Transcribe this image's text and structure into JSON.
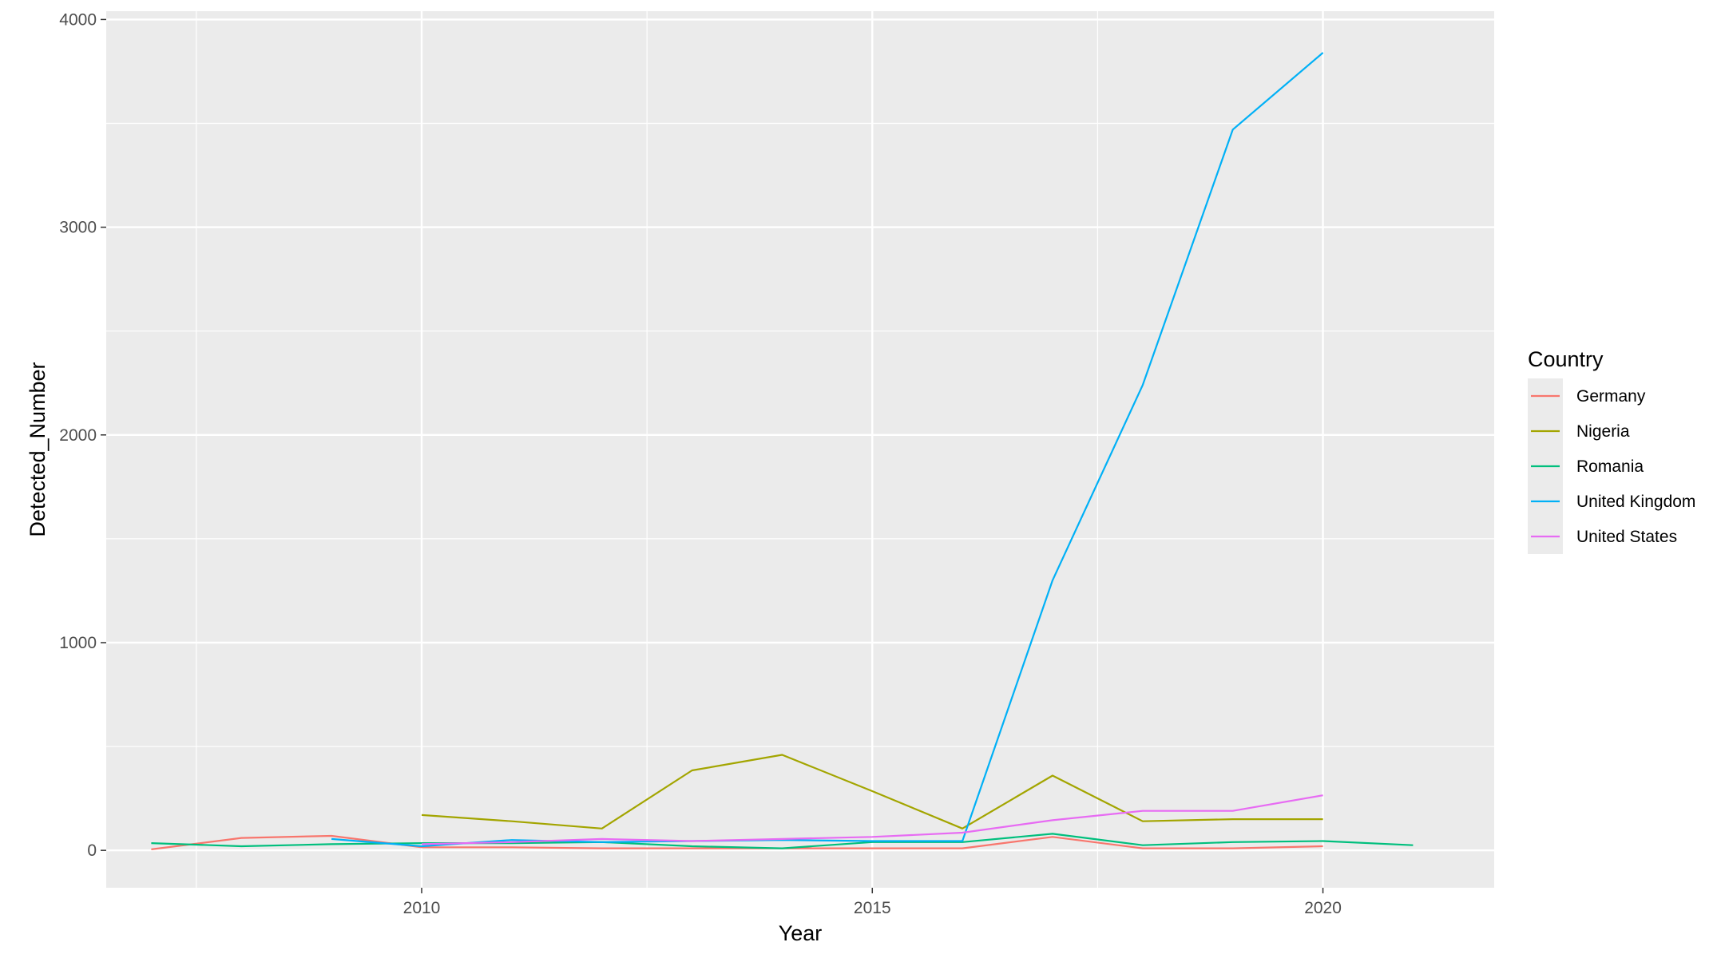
{
  "chart_data": {
    "type": "line",
    "title": "",
    "xlabel": "Year",
    "ylabel": "Detected_Number",
    "xlim": [
      2006.5,
      2021.9
    ],
    "ylim": [
      -180,
      4040
    ],
    "x_ticks": [
      2010,
      2015,
      2020
    ],
    "x_tick_labels": [
      "2010",
      "2015",
      "2020"
    ],
    "y_ticks": [
      0,
      1000,
      2000,
      3000,
      4000
    ],
    "y_tick_labels": [
      "0",
      "1000",
      "2000",
      "3000",
      "4000"
    ],
    "grid": true,
    "legend_position": "right",
    "legend_title": "Country",
    "series": [
      {
        "name": "Germany",
        "color": "#F8766D",
        "x": [
          2007,
          2008,
          2009,
          2010,
          2011,
          2012,
          2013,
          2014,
          2015,
          2016,
          2017,
          2018,
          2019,
          2020
        ],
        "y": [
          5,
          60,
          70,
          15,
          15,
          10,
          10,
          10,
          10,
          10,
          65,
          10,
          10,
          20
        ]
      },
      {
        "name": "Nigeria",
        "color": "#A3A500",
        "x": [
          2010,
          2011,
          2012,
          2013,
          2014,
          2015,
          2016,
          2017,
          2018,
          2019,
          2020
        ],
        "y": [
          170,
          140,
          105,
          385,
          460,
          285,
          105,
          360,
          140,
          150,
          150
        ]
      },
      {
        "name": "Romania",
        "color": "#00BF7D",
        "x": [
          2007,
          2008,
          2009,
          2010,
          2011,
          2012,
          2013,
          2014,
          2015,
          2016,
          2017,
          2018,
          2019,
          2020,
          2021
        ],
        "y": [
          35,
          20,
          30,
          35,
          35,
          40,
          20,
          10,
          40,
          40,
          80,
          25,
          40,
          45,
          25
        ]
      },
      {
        "name": "United Kingdom",
        "color": "#00B0F6",
        "x": [
          2009,
          2010,
          2011,
          2012,
          2013,
          2014,
          2015,
          2016,
          2017,
          2018,
          2019,
          2020
        ],
        "y": [
          55,
          20,
          50,
          40,
          45,
          50,
          45,
          45,
          1300,
          2240,
          3470,
          3840
        ]
      },
      {
        "name": "United States",
        "color": "#E76BF3",
        "x": [
          2010,
          2011,
          2012,
          2013,
          2014,
          2015,
          2016,
          2017,
          2018,
          2019,
          2020
        ],
        "y": [
          30,
          40,
          55,
          45,
          55,
          65,
          85,
          145,
          190,
          190,
          265
        ]
      }
    ]
  }
}
